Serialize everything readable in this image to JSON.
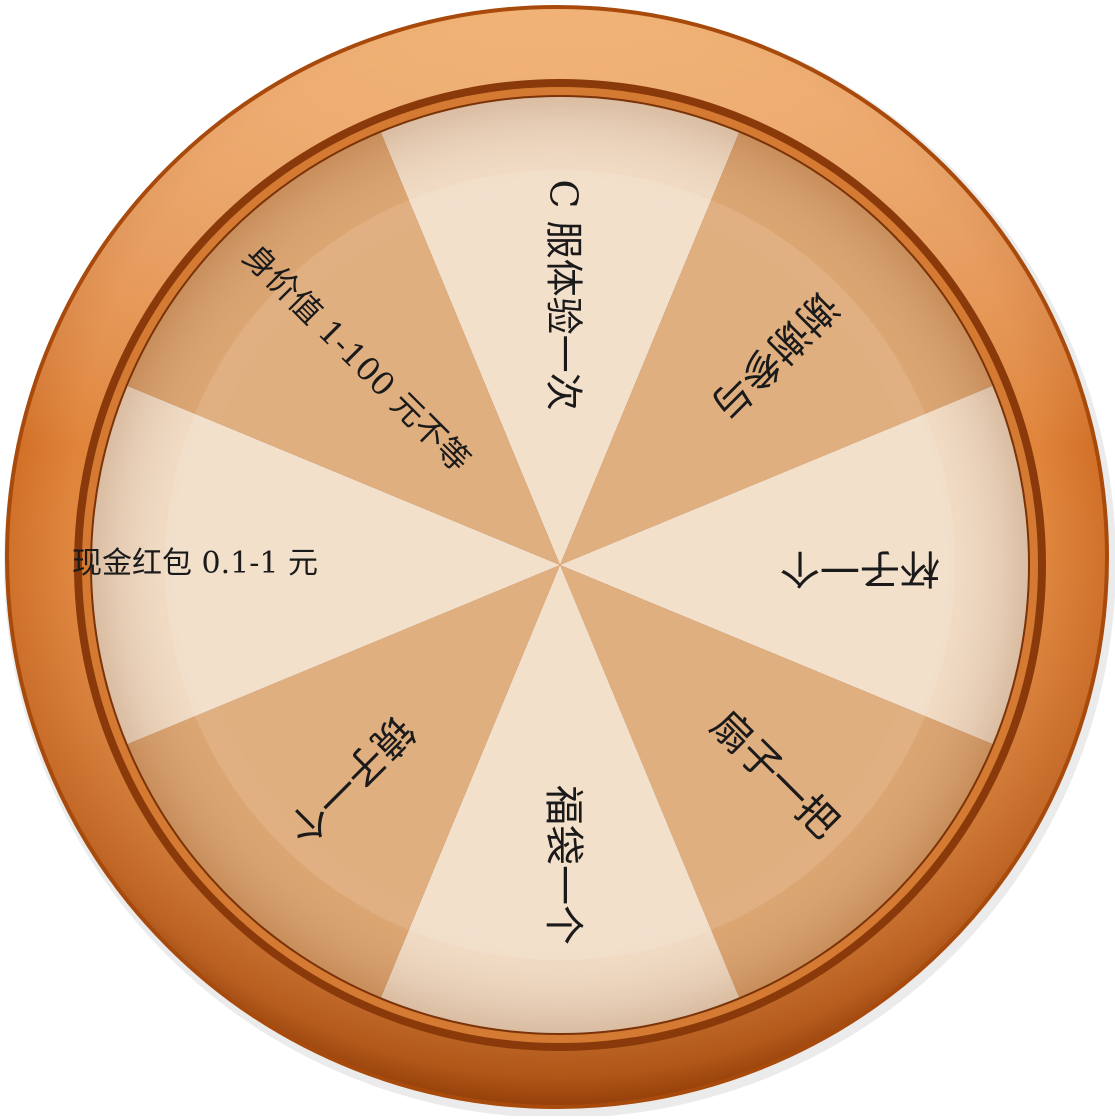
{
  "wheel": {
    "segments": [
      {
        "label": "C 服体验一次",
        "fill": "#f2dcc4"
      },
      {
        "label": "谢谢参与",
        "fill": "#dca46f"
      },
      {
        "label": "杯子一个",
        "fill": "#f2dcc4"
      },
      {
        "label": "扇子一把",
        "fill": "#dca46f"
      },
      {
        "label": "福袋一个",
        "fill": "#f2dcc4"
      },
      {
        "label": "镜子一个",
        "fill": "#dca46f"
      },
      {
        "label": "现金红包 0.1-1 元",
        "fill": "#f2dcc4"
      },
      {
        "label": "身价值 1-100 元不等",
        "fill": "#dca46f"
      }
    ],
    "colors": {
      "rim_outer": "#b85410",
      "rim_mid": "#e1863b",
      "rim_highlight": "#f6b06e",
      "rim_inner_groove": "#7a3208",
      "label_text": "#1a1a1a"
    }
  }
}
